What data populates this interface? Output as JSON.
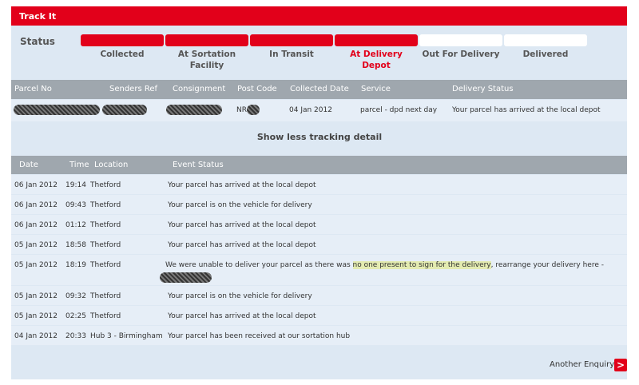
{
  "header": {
    "title": "Track It"
  },
  "status": {
    "label": "Status",
    "stages": [
      {
        "label": "Collected",
        "done": true,
        "current": false
      },
      {
        "label": "At Sortation Facility",
        "done": true,
        "current": false
      },
      {
        "label": "In Transit",
        "done": true,
        "current": false
      },
      {
        "label": "At Delivery Depot",
        "done": true,
        "current": true
      },
      {
        "label": "Out For Delivery",
        "done": false,
        "current": false
      },
      {
        "label": "Delivered",
        "done": false,
        "current": false
      }
    ]
  },
  "parcel_table": {
    "headers": [
      "Parcel No",
      "Senders Ref",
      "Consignment",
      "Post Code",
      "Collected Date",
      "Service",
      "Delivery Status"
    ],
    "row": {
      "post_code": "NR",
      "collected_date": "04 Jan 2012",
      "service": "parcel - dpd next day",
      "delivery_status": "Your parcel has arrived at the local depot"
    }
  },
  "toggle": "Show less tracking detail",
  "events": {
    "headers": [
      "Date",
      "Time",
      "Location",
      "Event Status"
    ],
    "rows": [
      {
        "date": "06 Jan 2012",
        "time": "19:14",
        "location": "Thetford",
        "status": [
          "Your parcel has arrived at the local depot"
        ]
      },
      {
        "date": "06 Jan 2012",
        "time": "09:43",
        "location": "Thetford",
        "status": [
          "Your parcel is on the vehicle for delivery"
        ]
      },
      {
        "date": "06 Jan 2012",
        "time": "01:12",
        "location": "Thetford",
        "status": [
          "Your parcel has arrived at the local depot"
        ]
      },
      {
        "date": "05 Jan 2012",
        "time": "18:58",
        "location": "Thetford",
        "status": [
          "Your parcel has arrived at the local depot"
        ]
      },
      {
        "date": "05 Jan 2012",
        "time": "18:19",
        "location": "Thetford",
        "status": [
          "We were unable to deliver your parcel as there was ",
          "no one present to sign for the delivery",
          ", rearrange your delivery here -"
        ]
      },
      {
        "date": "05 Jan 2012",
        "time": "09:32",
        "location": "Thetford",
        "status": [
          "Your parcel is on the vehicle for delivery"
        ]
      },
      {
        "date": "05 Jan 2012",
        "time": "02:25",
        "location": "Thetford",
        "status": [
          "Your parcel has arrived at the local depot"
        ]
      },
      {
        "date": "04 Jan 2012",
        "time": "20:33",
        "location": "Hub 3 - Birmingham",
        "status": [
          "Your parcel has been received at our sortation hub"
        ]
      }
    ]
  },
  "footer": {
    "link": "Another Enquiry"
  }
}
